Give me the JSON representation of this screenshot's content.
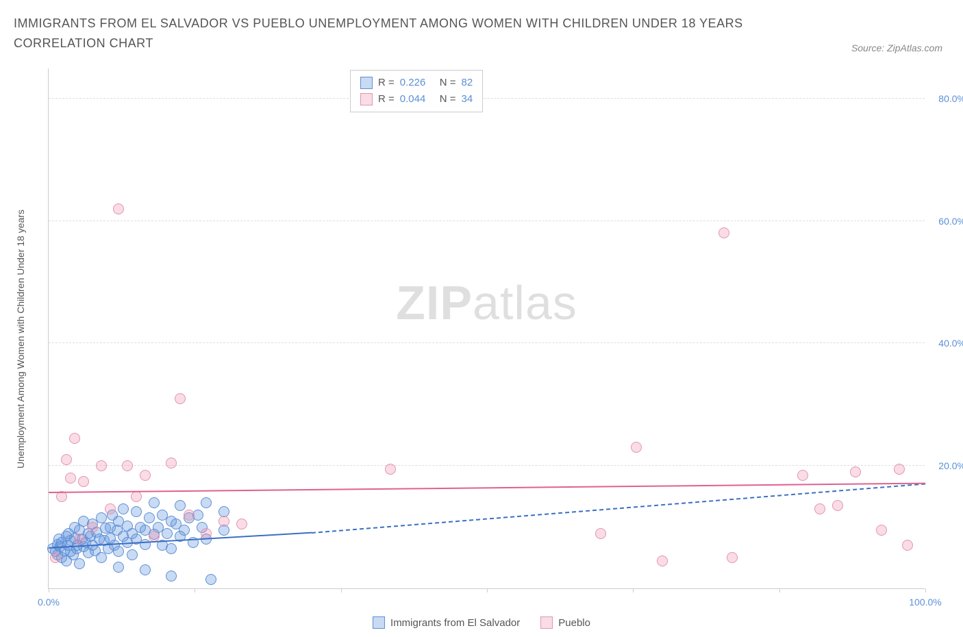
{
  "title": "IMMIGRANTS FROM EL SALVADOR VS PUEBLO UNEMPLOYMENT AMONG WOMEN WITH CHILDREN UNDER 18 YEARS CORRELATION CHART",
  "source": "Source: ZipAtlas.com",
  "watermark_bold": "ZIP",
  "watermark_light": "atlas",
  "y_axis_label": "Unemployment Among Women with Children Under 18 years",
  "chart": {
    "type": "scatter",
    "background_color": "#ffffff",
    "grid_color": "#dddddd",
    "axis_color": "#cccccc",
    "tick_label_color": "#5b8fd6",
    "xlim": [
      0,
      100
    ],
    "ylim": [
      0,
      85
    ],
    "y_ticks": [
      20,
      40,
      60,
      80
    ],
    "y_tick_labels": [
      "20.0%",
      "40.0%",
      "60.0%",
      "80.0%"
    ],
    "x_ticks": [
      0,
      16.67,
      33.33,
      50,
      66.67,
      83.33,
      100
    ],
    "x_tick_labels": {
      "0": "0.0%",
      "100": "100.0%"
    },
    "point_radius": 8,
    "series": [
      {
        "name": "Immigrants from El Salvador",
        "fill_color": "rgba(100,150,220,0.35)",
        "stroke_color": "#5b8fd6",
        "trend_color": "#3a6fc4",
        "R": "0.226",
        "N": "82",
        "trend": {
          "x1": 0,
          "y1": 6.5,
          "x2": 30,
          "y2": 9.0,
          "dash_x2": 100,
          "dash_y2": 17.0
        },
        "points": [
          [
            0.5,
            6.5
          ],
          [
            0.8,
            6.0
          ],
          [
            1.0,
            7.2
          ],
          [
            1.0,
            5.5
          ],
          [
            1.2,
            8.0
          ],
          [
            1.3,
            6.8
          ],
          [
            1.5,
            5.0
          ],
          [
            1.5,
            7.5
          ],
          [
            1.8,
            6.2
          ],
          [
            2.0,
            8.5
          ],
          [
            2.0,
            4.5
          ],
          [
            2.2,
            7.0
          ],
          [
            2.3,
            9.0
          ],
          [
            2.5,
            6.0
          ],
          [
            2.5,
            7.8
          ],
          [
            2.8,
            5.5
          ],
          [
            3.0,
            8.2
          ],
          [
            3.0,
            10.0
          ],
          [
            3.2,
            6.5
          ],
          [
            3.3,
            7.0
          ],
          [
            3.5,
            9.5
          ],
          [
            3.5,
            4.0
          ],
          [
            3.8,
            8.0
          ],
          [
            4.0,
            6.8
          ],
          [
            4.0,
            11.0
          ],
          [
            4.2,
            7.5
          ],
          [
            4.5,
            9.0
          ],
          [
            4.5,
            5.8
          ],
          [
            4.8,
            8.5
          ],
          [
            5.0,
            7.0
          ],
          [
            5.0,
            10.5
          ],
          [
            5.3,
            6.2
          ],
          [
            5.5,
            9.2
          ],
          [
            5.8,
            8.0
          ],
          [
            6.0,
            11.5
          ],
          [
            6.0,
            5.0
          ],
          [
            6.3,
            7.8
          ],
          [
            6.5,
            9.8
          ],
          [
            6.8,
            6.5
          ],
          [
            7.0,
            10.0
          ],
          [
            7.0,
            8.2
          ],
          [
            7.3,
            12.0
          ],
          [
            7.5,
            7.0
          ],
          [
            7.8,
            9.5
          ],
          [
            8.0,
            6.0
          ],
          [
            8.0,
            11.0
          ],
          [
            8.5,
            8.5
          ],
          [
            8.5,
            13.0
          ],
          [
            9.0,
            7.5
          ],
          [
            9.0,
            10.2
          ],
          [
            9.5,
            9.0
          ],
          [
            9.5,
            5.5
          ],
          [
            10.0,
            12.5
          ],
          [
            10.0,
            8.0
          ],
          [
            10.5,
            10.0
          ],
          [
            11.0,
            7.2
          ],
          [
            11.0,
            9.5
          ],
          [
            11.5,
            11.5
          ],
          [
            12.0,
            8.8
          ],
          [
            12.0,
            14.0
          ],
          [
            12.5,
            10.0
          ],
          [
            13.0,
            7.0
          ],
          [
            13.0,
            12.0
          ],
          [
            13.5,
            9.0
          ],
          [
            14.0,
            11.0
          ],
          [
            14.0,
            6.5
          ],
          [
            14.5,
            10.5
          ],
          [
            15.0,
            8.5
          ],
          [
            15.0,
            13.5
          ],
          [
            15.5,
            9.5
          ],
          [
            16.0,
            11.5
          ],
          [
            16.5,
            7.5
          ],
          [
            17.0,
            12.0
          ],
          [
            17.5,
            10.0
          ],
          [
            18.0,
            8.0
          ],
          [
            18.0,
            14.0
          ],
          [
            20.0,
            9.5
          ],
          [
            20.0,
            12.5
          ],
          [
            18.5,
            1.5
          ],
          [
            14.0,
            2.0
          ],
          [
            11.0,
            3.0
          ],
          [
            8.0,
            3.5
          ]
        ]
      },
      {
        "name": "Pueblo",
        "fill_color": "rgba(240,140,170,0.30)",
        "stroke_color": "#e295b0",
        "trend_color": "#e06090",
        "R": "0.044",
        "N": "34",
        "trend": {
          "x1": 0,
          "y1": 15.5,
          "x2": 100,
          "y2": 17.0
        },
        "points": [
          [
            0.8,
            5.0
          ],
          [
            1.5,
            15.0
          ],
          [
            2.0,
            21.0
          ],
          [
            2.5,
            18.0
          ],
          [
            3.0,
            24.5
          ],
          [
            3.5,
            8.0
          ],
          [
            4.0,
            17.5
          ],
          [
            5.0,
            10.0
          ],
          [
            6.0,
            20.0
          ],
          [
            7.0,
            13.0
          ],
          [
            8.0,
            62.0
          ],
          [
            9.0,
            20.0
          ],
          [
            10.0,
            15.0
          ],
          [
            11.0,
            18.5
          ],
          [
            12.0,
            8.5
          ],
          [
            14.0,
            20.5
          ],
          [
            15.0,
            31.0
          ],
          [
            16.0,
            12.0
          ],
          [
            18.0,
            9.0
          ],
          [
            20.0,
            11.0
          ],
          [
            22.0,
            10.5
          ],
          [
            39.0,
            19.5
          ],
          [
            63.0,
            9.0
          ],
          [
            67.0,
            23.0
          ],
          [
            70.0,
            4.5
          ],
          [
            77.0,
            58.0
          ],
          [
            78.0,
            5.0
          ],
          [
            86.0,
            18.5
          ],
          [
            88.0,
            13.0
          ],
          [
            90.0,
            13.5
          ],
          [
            92.0,
            19.0
          ],
          [
            95.0,
            9.5
          ],
          [
            97.0,
            19.5
          ],
          [
            98.0,
            7.0
          ]
        ]
      }
    ]
  },
  "bottom_legend": [
    {
      "label": "Immigrants from El Salvador",
      "fill": "rgba(100,150,220,0.35)",
      "stroke": "#5b8fd6"
    },
    {
      "label": "Pueblo",
      "fill": "rgba(240,140,170,0.30)",
      "stroke": "#e295b0"
    }
  ]
}
